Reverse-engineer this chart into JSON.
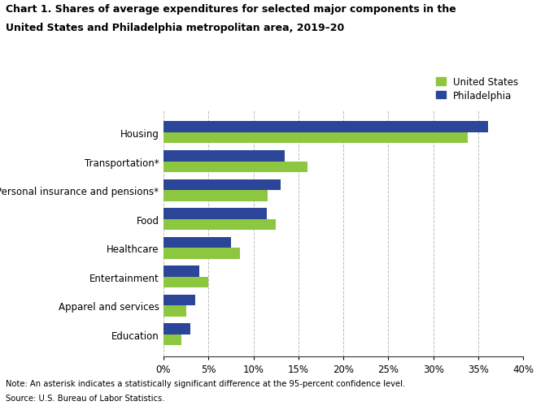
{
  "categories": [
    "Housing",
    "Transportation*",
    "Personal insurance and pensions*",
    "Food",
    "Healthcare",
    "Entertainment",
    "Apparel and services",
    "Education"
  ],
  "us_values": [
    33.8,
    16.0,
    11.6,
    12.5,
    8.5,
    5.0,
    2.5,
    2.0
  ],
  "philly_values": [
    36.1,
    13.5,
    13.0,
    11.5,
    7.5,
    4.0,
    3.5,
    3.0
  ],
  "us_color": "#8DC63F",
  "philly_color": "#2B4599",
  "us_label": "United States",
  "philly_label": "Philadelphia",
  "title_line1": "Chart 1. Shares of average expenditures for selected major components in the",
  "title_line2": "United States and Philadelphia metropolitan area, 2019–20",
  "xlim": [
    0,
    40
  ],
  "xtick_vals": [
    0,
    5,
    10,
    15,
    20,
    25,
    30,
    35,
    40
  ],
  "xtick_labels": [
    "0%",
    "5%",
    "10%",
    "15%",
    "20%",
    "25%",
    "30%",
    "35%",
    "40%"
  ],
  "note": "Note: An asterisk indicates a statistically significant difference at the 95-percent confidence level.",
  "source": "Source: U.S. Bureau of Labor Statistics.",
  "background_color": "#FFFFFF",
  "bar_height": 0.38,
  "grid_color": "#BBBBBB"
}
